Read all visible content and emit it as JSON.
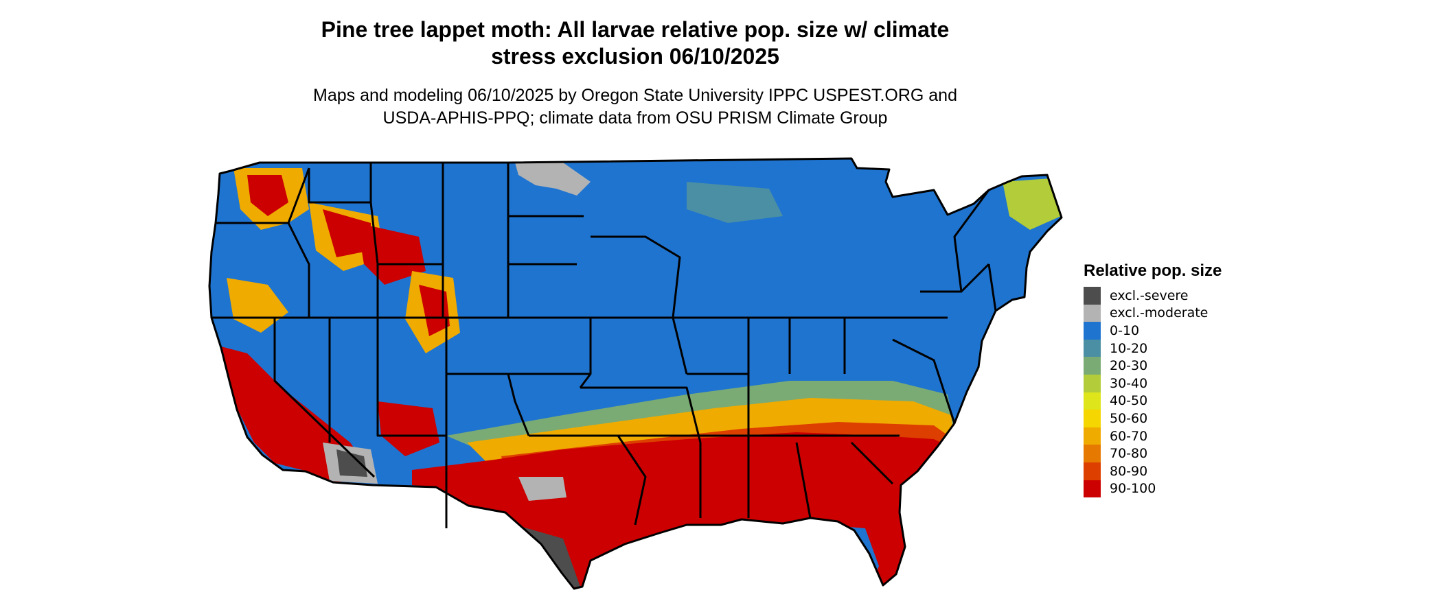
{
  "title_lines": [
    "Pine tree lappet moth: All larvae relative pop. size w/ climate",
    "stress exclusion 06/10/2025"
  ],
  "subtitle_lines": [
    "Maps and modeling 06/10/2025 by Oregon State University IPPC USPEST.ORG and",
    "USDA-APHIS-PPQ; climate data from OSU PRISM Climate Group"
  ],
  "legend": {
    "title": "Relative pop. size",
    "items": [
      {
        "label": "excl.-severe",
        "color": "#4d4d4d"
      },
      {
        "label": "excl.-moderate",
        "color": "#b3b3b3"
      },
      {
        "label": "0-10",
        "color": "#1f74d0"
      },
      {
        "label": "10-20",
        "color": "#4a8fa3"
      },
      {
        "label": "20-30",
        "color": "#7aab74"
      },
      {
        "label": "30-40",
        "color": "#b2cc3a"
      },
      {
        "label": "40-50",
        "color": "#dfe51b"
      },
      {
        "label": "50-60",
        "color": "#f5d600"
      },
      {
        "label": "60-70",
        "color": "#f0ab00"
      },
      {
        "label": "70-80",
        "color": "#e67a00"
      },
      {
        "label": "80-90",
        "color": "#dd3f00"
      },
      {
        "label": "90-100",
        "color": "#cc0000"
      }
    ]
  },
  "map": {
    "region": "contiguous United States",
    "state_border_color": "#000000",
    "water_color": "#ffffff"
  }
}
